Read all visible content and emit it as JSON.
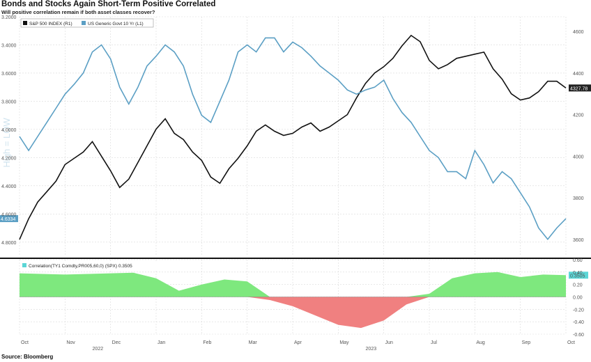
{
  "title": "Bonds and Stocks Again Short-Term Positive Correlated",
  "subtitle": "Will positive correlation remain if both asset classes recover?",
  "source": "Source: Bloomberg",
  "watermark": "High = LOW",
  "colors": {
    "spx": "#111111",
    "yield": "#5b9fc4",
    "pos_fill": "#7ee87e",
    "neg_fill": "#f08080"
  },
  "chart_data": [
    {
      "type": "line",
      "title": "Bonds and Stocks Again Short-Term Positive Correlated",
      "x_ticks": [
        "Oct",
        "Nov",
        "Dec",
        "Jan",
        "Feb",
        "Mar",
        "Apr",
        "May",
        "Jun",
        "Jul",
        "Aug",
        "Sep",
        "Oct"
      ],
      "x_year_labels": [
        "2022",
        "2023"
      ],
      "series": [
        {
          "name": "S&P 500 INDEX (R1)",
          "axis": "right",
          "last_value_label": "4327.78",
          "x": [
            0,
            0.2,
            0.4,
            0.6,
            0.8,
            1.0,
            1.2,
            1.4,
            1.6,
            1.8,
            2.0,
            2.2,
            2.4,
            2.6,
            2.8,
            3.0,
            3.2,
            3.4,
            3.6,
            3.8,
            4.0,
            4.2,
            4.4,
            4.6,
            4.8,
            5.0,
            5.2,
            5.4,
            5.6,
            5.8,
            6.0,
            6.2,
            6.4,
            6.6,
            6.8,
            7.0,
            7.2,
            7.4,
            7.6,
            7.8,
            8.0,
            8.2,
            8.4,
            8.6,
            8.8,
            9.0,
            9.2,
            9.4,
            9.6,
            9.8,
            10.0,
            10.2,
            10.4,
            10.6,
            10.8,
            11.0,
            11.2,
            11.4,
            11.6,
            11.8,
            12.0
          ],
          "values": [
            3600,
            3700,
            3780,
            3830,
            3880,
            3960,
            3990,
            4020,
            4070,
            4000,
            3930,
            3850,
            3890,
            3970,
            4050,
            4130,
            4180,
            4110,
            4080,
            4020,
            3980,
            3900,
            3870,
            3940,
            3990,
            4050,
            4120,
            4150,
            4120,
            4100,
            4110,
            4140,
            4160,
            4120,
            4140,
            4170,
            4200,
            4280,
            4350,
            4400,
            4430,
            4470,
            4530,
            4580,
            4550,
            4460,
            4420,
            4440,
            4470,
            4480,
            4490,
            4500,
            4420,
            4370,
            4300,
            4270,
            4280,
            4310,
            4360,
            4360,
            4327.78
          ]
        },
        {
          "name": "US Generic Govt 10 Yr (L1)",
          "axis": "left",
          "axis_inverted": true,
          "last_value_label": "4.6334",
          "x": [
            0,
            0.2,
            0.4,
            0.6,
            0.8,
            1.0,
            1.2,
            1.4,
            1.6,
            1.8,
            2.0,
            2.2,
            2.4,
            2.6,
            2.8,
            3.0,
            3.2,
            3.4,
            3.6,
            3.8,
            4.0,
            4.2,
            4.4,
            4.6,
            4.8,
            5.0,
            5.2,
            5.4,
            5.6,
            5.8,
            6.0,
            6.2,
            6.4,
            6.6,
            6.8,
            7.0,
            7.2,
            7.4,
            7.6,
            7.8,
            8.0,
            8.2,
            8.4,
            8.6,
            8.8,
            9.0,
            9.2,
            9.4,
            9.6,
            9.8,
            10.0,
            10.2,
            10.4,
            10.6,
            10.8,
            11.0,
            11.2,
            11.4,
            11.6,
            11.8,
            12.0
          ],
          "values": [
            4.05,
            4.15,
            4.05,
            3.95,
            3.85,
            3.75,
            3.68,
            3.6,
            3.45,
            3.4,
            3.5,
            3.7,
            3.82,
            3.7,
            3.55,
            3.48,
            3.4,
            3.45,
            3.55,
            3.75,
            3.9,
            3.95,
            3.8,
            3.65,
            3.45,
            3.4,
            3.45,
            3.35,
            3.35,
            3.45,
            3.38,
            3.42,
            3.48,
            3.55,
            3.6,
            3.65,
            3.72,
            3.75,
            3.72,
            3.7,
            3.65,
            3.78,
            3.88,
            3.95,
            4.05,
            4.15,
            4.2,
            4.3,
            4.3,
            4.35,
            4.15,
            4.25,
            4.38,
            4.3,
            4.35,
            4.45,
            4.55,
            4.7,
            4.78,
            4.7,
            4.6334
          ]
        }
      ],
      "y_left_ticks": [
        "3.2000",
        "3.4000",
        "3.6000",
        "3.8000",
        "4.0000",
        "4.2000",
        "4.4000",
        "4.6000",
        "4.8000"
      ],
      "y_left_range": [
        3.2,
        4.9
      ],
      "y_right_ticks": [
        "4600",
        "4400",
        "4200",
        "4000",
        "3800",
        "3600"
      ],
      "y_right_range": [
        3520,
        4670
      ],
      "legend_placement": "top-left",
      "grid": true
    },
    {
      "type": "area",
      "legend": "Correlation(TY1 Comdty,PR005,60,0) (SPX) 0.3505",
      "last_value_label": "0.3505",
      "x_ticks": [
        "Oct",
        "Nov",
        "Dec",
        "Jan",
        "Feb",
        "Mar",
        "Apr",
        "May",
        "Jun",
        "Jul",
        "Aug",
        "Sep",
        "Oct"
      ],
      "x": [
        0,
        0.5,
        1.0,
        1.5,
        2.0,
        2.5,
        3.0,
        3.5,
        4.0,
        4.5,
        5.0,
        5.5,
        6.0,
        6.5,
        7.0,
        7.5,
        8.0,
        8.5,
        9.0,
        9.5,
        10.0,
        10.5,
        11.0,
        11.5,
        12.0
      ],
      "values": [
        0.38,
        0.37,
        0.36,
        0.37,
        0.38,
        0.39,
        0.3,
        0.1,
        0.2,
        0.28,
        0.25,
        -0.05,
        -0.15,
        -0.3,
        -0.45,
        -0.5,
        -0.38,
        -0.12,
        0.05,
        0.3,
        0.38,
        0.4,
        0.32,
        0.36,
        0.35
      ],
      "y_ticks": [
        "0.60",
        "0.40",
        "0.20",
        "0.00",
        "-0.20",
        "-0.40",
        "-0.60"
      ],
      "y_range": [
        -0.6,
        0.6
      ]
    }
  ]
}
